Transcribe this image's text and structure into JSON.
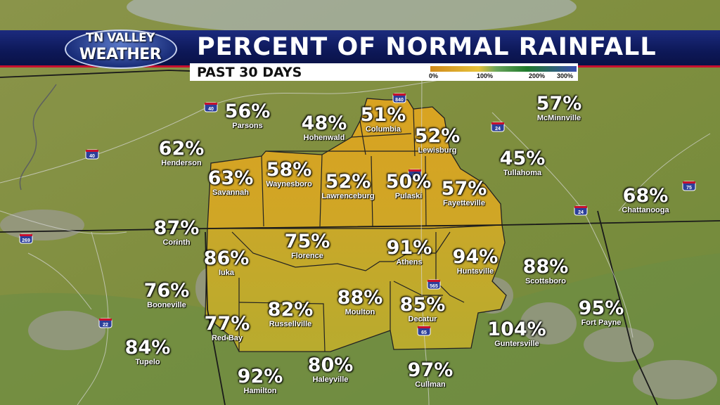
{
  "header": {
    "logo_line1": "TN VALLEY",
    "logo_line2": "WEATHER",
    "title": "PERCENT OF NORMAL RAINFALL",
    "subtitle": "PAST 30 DAYS"
  },
  "legend": {
    "ticks": [
      "0%",
      "100%",
      "200%",
      "300%"
    ],
    "colors": [
      "#d08a1a",
      "#e6c23a",
      "#6aa55a",
      "#1f7a2d",
      "#3a4fb0"
    ]
  },
  "highways": [
    "40",
    "40",
    "840",
    "24",
    "24",
    "75",
    "269",
    "22",
    "65",
    "565",
    "65"
  ],
  "cities": [
    {
      "name": "Parsons",
      "value": "56%"
    },
    {
      "name": "Hohenwald",
      "value": "48%"
    },
    {
      "name": "Columbia",
      "value": "51%"
    },
    {
      "name": "Lewisburg",
      "value": "52%"
    },
    {
      "name": "McMinnville",
      "value": "57%"
    },
    {
      "name": "Henderson",
      "value": "62%"
    },
    {
      "name": "Savannah",
      "value": "63%"
    },
    {
      "name": "Waynesboro",
      "value": "58%"
    },
    {
      "name": "Lawrenceburg",
      "value": "52%"
    },
    {
      "name": "Pulaski",
      "value": "50%"
    },
    {
      "name": "Fayetteville",
      "value": "57%"
    },
    {
      "name": "Tullahoma",
      "value": "45%"
    },
    {
      "name": "Chattanooga",
      "value": "68%"
    },
    {
      "name": "Corinth",
      "value": "87%"
    },
    {
      "name": "Florence",
      "value": "75%"
    },
    {
      "name": "Athens",
      "value": "91%"
    },
    {
      "name": "Huntsville",
      "value": "94%"
    },
    {
      "name": "Iuka",
      "value": "86%"
    },
    {
      "name": "Scottsboro",
      "value": "88%"
    },
    {
      "name": "Booneville",
      "value": "76%"
    },
    {
      "name": "Russellville",
      "value": "82%"
    },
    {
      "name": "Moulton",
      "value": "88%"
    },
    {
      "name": "Decatur",
      "value": "85%"
    },
    {
      "name": "Fort Payne",
      "value": "95%"
    },
    {
      "name": "Red Bay",
      "value": "77%"
    },
    {
      "name": "Guntersville",
      "value": "104%"
    },
    {
      "name": "Tupelo",
      "value": "84%"
    },
    {
      "name": "Hamilton",
      "value": "92%"
    },
    {
      "name": "Haleyville",
      "value": "80%"
    },
    {
      "name": "Cullman",
      "value": "97%"
    }
  ]
}
